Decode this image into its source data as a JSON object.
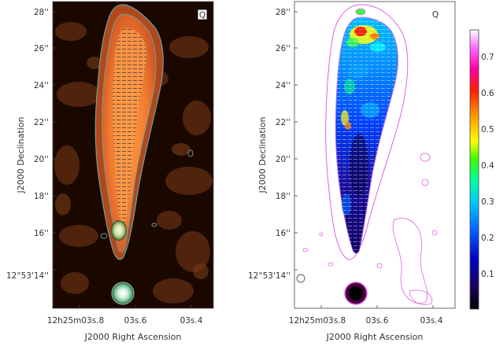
{
  "panels": [
    {
      "id": "left",
      "label": "Q",
      "y_ticks": [
        "28''",
        "26''",
        "24''",
        "22''",
        "20''",
        "18''",
        "16''",
        "12°53'14''"
      ],
      "x_ticks": [
        "12h25m03s.8",
        "03s.6",
        "03s.4"
      ],
      "xlabel": "J2000 Right Ascension",
      "ylabel": "J2000 Declination"
    },
    {
      "id": "right",
      "label": "Q",
      "y_ticks": [
        "28''",
        "26''",
        "24''",
        "22''",
        "20''",
        "18''",
        "16''",
        "12°53'14''"
      ],
      "x_ticks": [
        "12h25m03s.8",
        "03s.6",
        "03s.4"
      ],
      "xlabel": "J2000 Right Ascension",
      "ylabel": "J2000 Declination"
    }
  ],
  "colorbar": {
    "ticks": [
      "0.7",
      "0.6",
      "0.5",
      "0.4",
      "0.3",
      "0.2",
      "0.1"
    ],
    "min": 0.0,
    "max": 0.75,
    "colors": [
      "#000000",
      "#1a0080",
      "#0000ff",
      "#0080ff",
      "#00ffff",
      "#00ff00",
      "#ffff00",
      "#ff8000",
      "#ff0000",
      "#ff00ff",
      "#ffffff"
    ]
  }
}
